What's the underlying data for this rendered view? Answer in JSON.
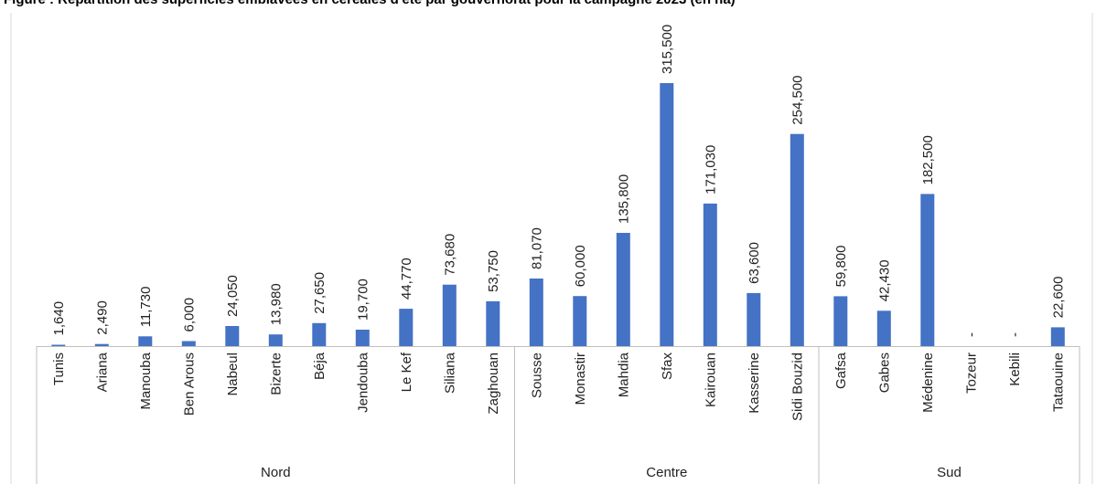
{
  "header": {
    "title": "Figure : Répartition des superficies emblavées en céréales d'été par gouvernorat pour la campagne 2023 (en ha)"
  },
  "colors": {
    "bar": "#4472C4",
    "axis": "#bfbfbf",
    "text": "#222222"
  },
  "chart_data": {
    "type": "bar",
    "categories": [
      "Tunis",
      "Ariana",
      "Manouba",
      "Ben Arous",
      "Nabeul",
      "Bizerte",
      "Béja",
      "Jendouba",
      "Le Kef",
      "Siliana",
      "Zaghouan",
      "Sousse",
      "Monastir",
      "Mahdia",
      "Sfax",
      "Kairouan",
      "Kasserine",
      "Sidi Bouzid",
      "Gafsa",
      "Gabes",
      "Médenine",
      "Tozeur",
      "Kebili",
      "Tataouine"
    ],
    "values": [
      1640,
      2490,
      11730,
      6000,
      24050,
      13980,
      27650,
      19700,
      44770,
      73680,
      53750,
      81070,
      60000,
      135800,
      315500,
      171030,
      63600,
      254500,
      59800,
      42430,
      182500,
      null,
      null,
      22600
    ],
    "data_labels": [
      "1,640",
      "2,490",
      "11,730",
      "6,000",
      "24,050",
      "13,980",
      "27,650",
      "19,700",
      "44,770",
      "73,680",
      "53,750",
      "81,070",
      "60,000",
      "135,800",
      "315,500",
      "171,030",
      "63,600",
      "254,500",
      "59,800",
      "42,430",
      "182,500",
      "-",
      "-",
      "22,600"
    ],
    "groups": [
      {
        "name": "Nord",
        "count": 11
      },
      {
        "name": "Centre",
        "count": 7
      },
      {
        "name": "Sud",
        "count": 6
      }
    ],
    "ylim": [
      0,
      315500
    ],
    "grid": false,
    "legend": "none",
    "xlabel": "",
    "ylabel": ""
  }
}
